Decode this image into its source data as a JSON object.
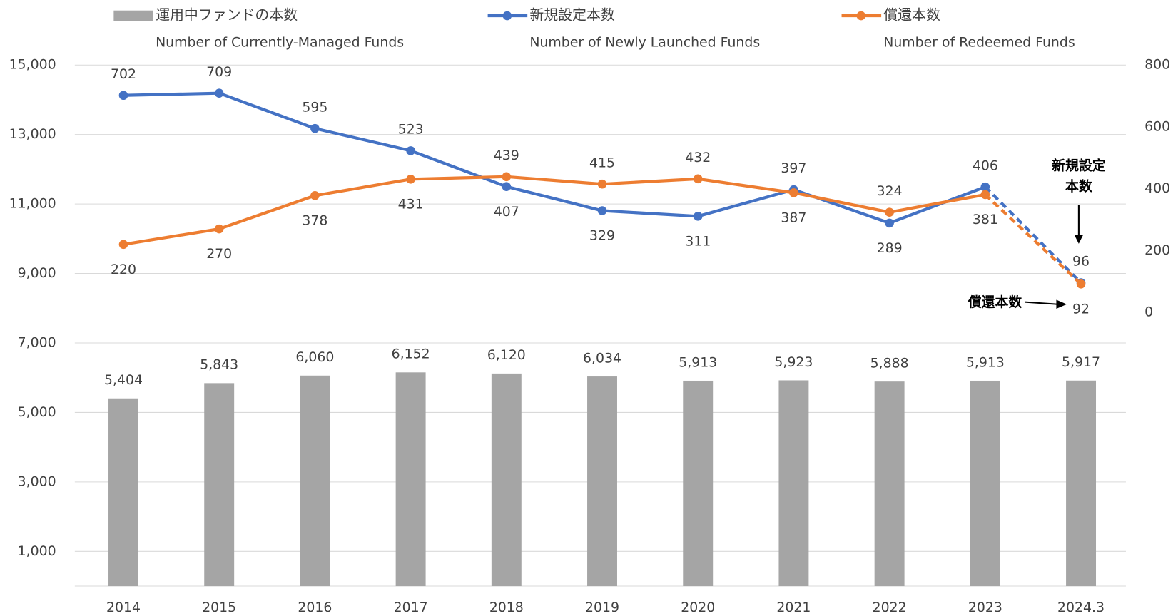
{
  "chart_data": {
    "type": "bar_line_combo",
    "categories": [
      "2014",
      "2015",
      "2016",
      "2017",
      "2018",
      "2019",
      "2020",
      "2021",
      "2022",
      "2023",
      "2024.3"
    ],
    "series": [
      {
        "name": "運用中ファンドの本数",
        "name_en": "Number of Currently-Managed Funds",
        "type": "bar",
        "color": "#a5a5a5",
        "axis": "y",
        "values": [
          5404,
          5843,
          6060,
          6152,
          6120,
          6034,
          5913,
          5923,
          5888,
          5913,
          5917
        ],
        "value_labels": [
          "5,404",
          "5,843",
          "6,060",
          "6,152",
          "6,120",
          "6,034",
          "5,913",
          "5,923",
          "5,888",
          "5,913",
          "5,917"
        ]
      },
      {
        "name": "新規設定本数",
        "name_en": "Number of Newly Launched Funds",
        "type": "line",
        "color": "#4472c4",
        "axis": "y2",
        "values": [
          702,
          709,
          595,
          523,
          407,
          329,
          311,
          397,
          289,
          406,
          96
        ]
      },
      {
        "name": "償還本数",
        "name_en": "Number of Redeemed Funds",
        "type": "line",
        "color": "#ed7d31",
        "axis": "y2",
        "values": [
          220,
          270,
          378,
          431,
          439,
          415,
          432,
          387,
          324,
          381,
          92
        ]
      }
    ],
    "dashed_from": "2023",
    "ylim": [
      0,
      15000
    ],
    "yticks": [
      {
        "value": 1000,
        "label": "1,000"
      },
      {
        "value": 3000,
        "label": "3,000"
      },
      {
        "value": 5000,
        "label": "5,000"
      },
      {
        "value": 7000,
        "label": "7,000"
      },
      {
        "value": 9000,
        "label": "9,000"
      },
      {
        "value": 11000,
        "label": "11,000"
      },
      {
        "value": 13000,
        "label": "13,000"
      },
      {
        "value": 15000,
        "label": "15,000"
      }
    ],
    "y2lim": [
      -885,
      800
    ],
    "y2ticks": [
      0,
      200,
      400,
      600,
      800
    ],
    "grid": true,
    "annotations": [
      {
        "lines": [
          "新規設定",
          "本数"
        ],
        "series": 1
      },
      {
        "lines": [
          "償還本数"
        ],
        "series": 2
      }
    ]
  }
}
